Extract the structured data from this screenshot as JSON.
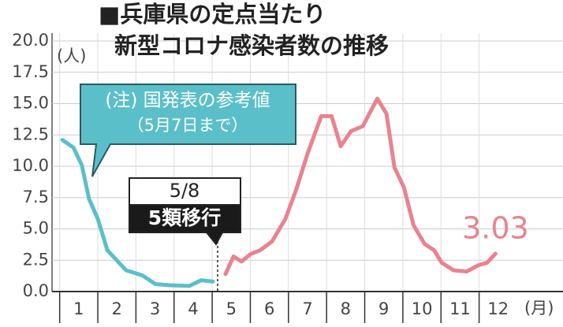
{
  "chart_data": {
    "type": "line",
    "title": [
      "■兵庫県の定点当たり",
      "新型コロナ感染者数の推移"
    ],
    "y_unit": "(人)",
    "x_unit": "(月)",
    "xlim": [
      0.3,
      13.7
    ],
    "ylim": [
      0,
      20
    ],
    "xticks": [
      1,
      2,
      3,
      4,
      5,
      6,
      7,
      8,
      9,
      10,
      11,
      12
    ],
    "yticks": [
      {
        "value": 0,
        "label": "0.0"
      },
      {
        "value": 2.5,
        "label": "2.5"
      },
      {
        "value": 5,
        "label": "5.0"
      },
      {
        "value": 7.5,
        "label": "7.5"
      },
      {
        "value": 10,
        "label": "10.0"
      },
      {
        "value": 12.5,
        "label": "12.5"
      },
      {
        "value": 15,
        "label": "15.0"
      },
      {
        "value": 17.5,
        "label": "17.5"
      },
      {
        "value": 20,
        "label": "20.0"
      }
    ],
    "grid": true,
    "series": [
      {
        "color": "#5bbfc9",
        "x": [
          0.57,
          0.86,
          1.08,
          1.27,
          1.5,
          1.75,
          2.24,
          2.66,
          3.01,
          3.38,
          3.9,
          4.21,
          4.52
        ],
        "values": [
          12.1,
          11.5,
          10.1,
          7.4,
          5.8,
          3.3,
          1.7,
          1.3,
          0.6,
          0.5,
          0.45,
          0.9,
          0.8
        ]
      },
      {
        "color": "#e8838f",
        "x": [
          4.85,
          5.06,
          5.27,
          5.51,
          5.76,
          6.07,
          6.42,
          6.71,
          7.0,
          7.36,
          7.63,
          7.87,
          8.14,
          8.45,
          8.83,
          9.07,
          9.28,
          9.53,
          9.78,
          10.07,
          10.32,
          10.52,
          10.83,
          11.17,
          11.48,
          11.71,
          11.93
        ],
        "values": [
          1.4,
          2.8,
          2.4,
          3.0,
          3.3,
          4.0,
          5.8,
          8.2,
          11.0,
          14.0,
          14.0,
          11.6,
          12.8,
          13.2,
          15.4,
          14.2,
          9.9,
          8.3,
          5.3,
          3.8,
          3.3,
          2.3,
          1.7,
          1.6,
          2.1,
          2.3,
          3.03
        ],
        "value_labels": [
          null,
          null,
          null,
          null,
          null,
          null,
          null,
          null,
          null,
          null,
          null,
          null,
          null,
          null,
          null,
          null,
          null,
          null,
          null,
          null,
          null,
          null,
          null,
          null,
          null,
          null,
          "3.03"
        ]
      }
    ],
    "annotations": [
      {
        "lines": [
          "(注) 国発表の参考値",
          "（5月7日まで）"
        ]
      },
      {
        "lines": [
          "5/8",
          "5類移行"
        ]
      }
    ]
  }
}
